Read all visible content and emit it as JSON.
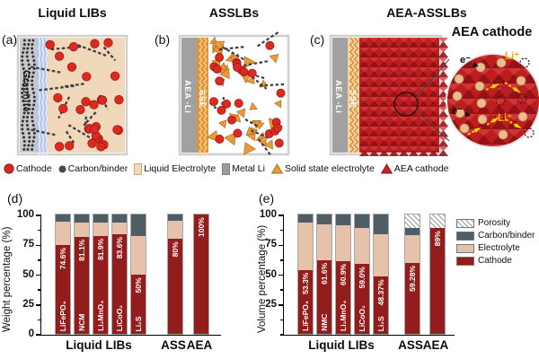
{
  "figure": {
    "panel_a": {
      "letter": "(a)",
      "title": "Liquid LIBs",
      "layer_label": "Graphite"
    },
    "panel_b": {
      "letter": "(b)",
      "title": "ASSLBs",
      "anode_label": "AEA -Li",
      "sse_label": "SSE"
    },
    "panel_c": {
      "letter": "(c)",
      "title": "AEA-ASSLBs",
      "anode_label": "AEA -Li",
      "sse_label": "SSE",
      "inset_title": "AEA cathode",
      "electron_label": "e⁻",
      "lithium_label": "Li⁺"
    },
    "materials_legend": [
      {
        "icon": "circle-red",
        "label": "Cathode",
        "color": "#d42b21"
      },
      {
        "icon": "circle-dark",
        "label": "Carbon/binder",
        "color": "#4a4a4a"
      },
      {
        "icon": "square-beige",
        "label": "Liquid Electrolyte",
        "color": "#f2d9ba"
      },
      {
        "icon": "square-gray",
        "label": "Metal Li",
        "color": "#9c9c9c"
      },
      {
        "icon": "triangle-orange",
        "label": "Solid state electrolyte",
        "color": "#e89a3e"
      },
      {
        "icon": "triangle-red",
        "label": "AEA cathode",
        "color": "#c92025"
      }
    ]
  },
  "chart_data": [
    {
      "type": "bar",
      "stacked": true,
      "panel_label": "(d)",
      "ylabel": "Weight percentage (%)",
      "ylim": [
        0,
        100
      ],
      "yticks": [
        0,
        25,
        50,
        75,
        100
      ],
      "grid": false,
      "categories": [
        "LiFePO₄",
        "NCM",
        "Li₂MnO₄",
        "LiCoO₂",
        "Li₂S",
        "ASS",
        "AEA"
      ],
      "group_labels": [
        "Liquid LIBs",
        "ASS",
        "AEA"
      ],
      "bar_material_labels": [
        "LiFePO₄",
        "NCM",
        "Li₂MnO₄",
        "LiCoO₂",
        "Li₂S",
        "",
        ""
      ],
      "cathode_value_labels": [
        "74.6%",
        "81.1%",
        "81.9%",
        "83.6%",
        "50%",
        "80%",
        "100%"
      ],
      "series": [
        {
          "name": "Cathode",
          "color": "#931c1c",
          "values": [
            74.6,
            81.1,
            81.9,
            83.6,
            50,
            80,
            100
          ]
        },
        {
          "name": "Electrolyte",
          "color": "#e6c2ab",
          "values": [
            19.4,
            12.4,
            11.6,
            9.9,
            32,
            14.5,
            0
          ]
        },
        {
          "name": "Carbon/binder",
          "color": "#4e5d66",
          "values": [
            6,
            6.5,
            6.5,
            6.5,
            18,
            5.5,
            0
          ]
        },
        {
          "name": "Porosity",
          "color": "hatch",
          "values": [
            0,
            0,
            0,
            0,
            0,
            0,
            0
          ]
        }
      ]
    },
    {
      "type": "bar",
      "stacked": true,
      "panel_label": "(e)",
      "ylabel": "Volume percentage (%)",
      "ylim": [
        0,
        100
      ],
      "yticks": [
        25,
        50,
        75,
        100
      ],
      "grid": false,
      "categories": [
        "LiFePO₄",
        "NMC",
        "Li₂MnO₄",
        "LiCoO₂",
        "Li₂S",
        "ASS",
        "AEA"
      ],
      "group_labels": [
        "Liquid LIBs",
        "ASS",
        "AEA"
      ],
      "bar_material_labels": [
        "LiFePO₄",
        "NMC",
        "Li₂MnO₄",
        "LiCoO₂",
        "Li₂S",
        "",
        ""
      ],
      "cathode_value_labels": [
        "53.3%",
        "61.6%",
        "60.9%",
        "59.0%",
        "48.37%",
        "59.28%",
        "89%"
      ],
      "legend": [
        "Porosity",
        "Carbon/binder",
        "Electrolyte",
        "Cathode"
      ],
      "series": [
        {
          "name": "Cathode",
          "color": "#931c1c",
          "values": [
            53.3,
            61.6,
            60.9,
            59.0,
            48.37,
            59.28,
            89
          ]
        },
        {
          "name": "Electrolyte",
          "color": "#e6c2ab",
          "values": [
            39.7,
            30.4,
            30.1,
            30.0,
            35.13,
            23.72,
            0
          ]
        },
        {
          "name": "Carbon/binder",
          "color": "#4e5d66",
          "values": [
            7,
            8,
            9,
            11,
            16.5,
            5.5,
            0
          ]
        },
        {
          "name": "Porosity",
          "color": "hatch",
          "values": [
            0,
            0,
            0,
            0,
            0,
            11.5,
            11
          ]
        }
      ]
    }
  ]
}
